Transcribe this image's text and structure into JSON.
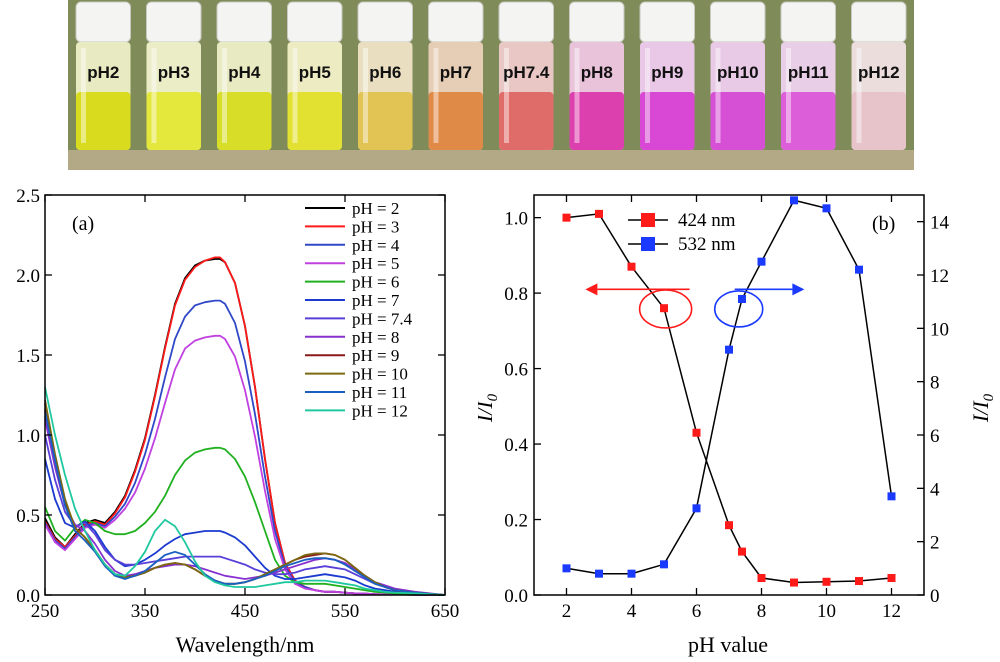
{
  "photo": {
    "vials": [
      {
        "label": "pH2",
        "liquid": "#d9dc1e",
        "glass": "#eef0c8"
      },
      {
        "label": "pH3",
        "liquid": "#e4e83c",
        "glass": "#f0f2cc"
      },
      {
        "label": "pH4",
        "liquid": "#d8de28",
        "glass": "#eef0c8"
      },
      {
        "label": "pH5",
        "liquid": "#e2e030",
        "glass": "#f2f0c8"
      },
      {
        "label": "pH6",
        "liquid": "#e2c454",
        "glass": "#efe4c6"
      },
      {
        "label": "pH7",
        "liquid": "#e08a48",
        "glass": "#ecd2bc"
      },
      {
        "label": "pH7.4",
        "liquid": "#e06c6a",
        "glass": "#eecaca"
      },
      {
        "label": "pH8",
        "liquid": "#dc3fae",
        "glass": "#efc6e2"
      },
      {
        "label": "pH9",
        "liquid": "#d848d4",
        "glass": "#eecaef"
      },
      {
        "label": "pH10",
        "liquid": "#d650d6",
        "glass": "#eecdee"
      },
      {
        "label": "pH11",
        "liquid": "#dc5ed8",
        "glass": "#eed2ee"
      },
      {
        "label": "pH12",
        "liquid": "#e6c4ca",
        "glass": "#f0e2e4"
      }
    ]
  },
  "chart_data": [
    {
      "type": "line",
      "panel_label": "(a)",
      "xlabel": "Wavelength/nm",
      "ylabel": "",
      "xlim": [
        250,
        650
      ],
      "ylim": [
        0.0,
        2.5
      ],
      "xticks": [
        250,
        350,
        450,
        550,
        650
      ],
      "yticks": [
        "0.0",
        "0.5",
        "1.0",
        "1.5",
        "2.0",
        "2.5"
      ],
      "legend_position": "top-right",
      "x": [
        250,
        260,
        270,
        280,
        290,
        300,
        310,
        320,
        330,
        340,
        350,
        360,
        370,
        380,
        390,
        400,
        410,
        420,
        425,
        430,
        440,
        450,
        460,
        470,
        480,
        490,
        500,
        510,
        520,
        530,
        540,
        550,
        560,
        570,
        580,
        590,
        600,
        620,
        650
      ],
      "series": [
        {
          "name": "pH = 2",
          "color": "#000000",
          "values": [
            0.48,
            0.36,
            0.3,
            0.38,
            0.45,
            0.47,
            0.45,
            0.52,
            0.62,
            0.78,
            0.98,
            1.25,
            1.55,
            1.82,
            1.98,
            2.06,
            2.09,
            2.1,
            2.1,
            2.08,
            1.95,
            1.68,
            1.3,
            0.85,
            0.45,
            0.2,
            0.09,
            0.05,
            0.03,
            0.02,
            0.02,
            0.015,
            0.01,
            0.008,
            0.005,
            0.004,
            0.003,
            0.002,
            0.0
          ]
        },
        {
          "name": "pH = 3",
          "color": "#ff1a1a",
          "values": [
            0.46,
            0.35,
            0.3,
            0.37,
            0.44,
            0.46,
            0.44,
            0.51,
            0.61,
            0.77,
            0.97,
            1.24,
            1.54,
            1.81,
            1.97,
            2.05,
            2.09,
            2.11,
            2.11,
            2.08,
            1.95,
            1.68,
            1.3,
            0.85,
            0.45,
            0.2,
            0.09,
            0.05,
            0.03,
            0.02,
            0.02,
            0.015,
            0.01,
            0.008,
            0.005,
            0.004,
            0.003,
            0.002,
            0.0
          ]
        },
        {
          "name": "pH = 4",
          "color": "#3048c8",
          "values": [
            0.45,
            0.34,
            0.29,
            0.36,
            0.43,
            0.45,
            0.43,
            0.49,
            0.57,
            0.7,
            0.88,
            1.1,
            1.36,
            1.6,
            1.74,
            1.81,
            1.83,
            1.84,
            1.84,
            1.82,
            1.7,
            1.46,
            1.13,
            0.74,
            0.4,
            0.18,
            0.08,
            0.05,
            0.03,
            0.02,
            0.02,
            0.015,
            0.01,
            0.008,
            0.005,
            0.004,
            0.003,
            0.002,
            0.0
          ]
        },
        {
          "name": "pH = 5",
          "color": "#c040e0",
          "values": [
            0.44,
            0.33,
            0.28,
            0.35,
            0.42,
            0.44,
            0.42,
            0.47,
            0.54,
            0.64,
            0.79,
            0.98,
            1.2,
            1.41,
            1.54,
            1.59,
            1.61,
            1.62,
            1.62,
            1.6,
            1.49,
            1.28,
            0.99,
            0.65,
            0.35,
            0.16,
            0.07,
            0.04,
            0.03,
            0.02,
            0.02,
            0.015,
            0.01,
            0.008,
            0.005,
            0.004,
            0.003,
            0.002,
            0.0
          ]
        },
        {
          "name": "pH = 6",
          "color": "#20b020",
          "values": [
            0.55,
            0.4,
            0.34,
            0.42,
            0.47,
            0.45,
            0.4,
            0.38,
            0.38,
            0.4,
            0.45,
            0.52,
            0.62,
            0.75,
            0.84,
            0.89,
            0.91,
            0.92,
            0.92,
            0.91,
            0.85,
            0.74,
            0.58,
            0.4,
            0.22,
            0.12,
            0.08,
            0.07,
            0.07,
            0.07,
            0.06,
            0.05,
            0.04,
            0.03,
            0.02,
            0.015,
            0.01,
            0.005,
            0.0
          ]
        },
        {
          "name": "pH = 7",
          "color": "#1a3ad0",
          "values": [
            0.85,
            0.6,
            0.45,
            0.42,
            0.46,
            0.4,
            0.3,
            0.22,
            0.18,
            0.19,
            0.22,
            0.26,
            0.31,
            0.35,
            0.38,
            0.39,
            0.4,
            0.4,
            0.4,
            0.39,
            0.36,
            0.31,
            0.24,
            0.17,
            0.12,
            0.1,
            0.1,
            0.11,
            0.12,
            0.13,
            0.12,
            0.11,
            0.09,
            0.06,
            0.04,
            0.03,
            0.02,
            0.01,
            0.0
          ]
        },
        {
          "name": "pH = 7.4",
          "color": "#5840d8",
          "values": [
            1.0,
            0.72,
            0.52,
            0.43,
            0.45,
            0.38,
            0.28,
            0.22,
            0.19,
            0.19,
            0.2,
            0.21,
            0.22,
            0.23,
            0.24,
            0.24,
            0.24,
            0.24,
            0.24,
            0.23,
            0.21,
            0.19,
            0.16,
            0.14,
            0.13,
            0.13,
            0.14,
            0.16,
            0.17,
            0.18,
            0.17,
            0.16,
            0.13,
            0.1,
            0.07,
            0.05,
            0.03,
            0.015,
            0.0
          ]
        },
        {
          "name": "pH = 8",
          "color": "#8830d0",
          "values": [
            1.1,
            0.8,
            0.56,
            0.44,
            0.4,
            0.32,
            0.22,
            0.15,
            0.12,
            0.13,
            0.15,
            0.17,
            0.18,
            0.19,
            0.19,
            0.18,
            0.16,
            0.14,
            0.13,
            0.12,
            0.11,
            0.1,
            0.11,
            0.12,
            0.14,
            0.16,
            0.18,
            0.2,
            0.22,
            0.23,
            0.22,
            0.2,
            0.16,
            0.12,
            0.08,
            0.06,
            0.04,
            0.02,
            0.0
          ]
        },
        {
          "name": "pH = 9",
          "color": "#8b1a1a",
          "values": [
            1.2,
            0.86,
            0.58,
            0.42,
            0.36,
            0.28,
            0.19,
            0.13,
            0.11,
            0.12,
            0.14,
            0.17,
            0.19,
            0.2,
            0.19,
            0.16,
            0.12,
            0.09,
            0.08,
            0.07,
            0.07,
            0.08,
            0.1,
            0.13,
            0.16,
            0.19,
            0.22,
            0.24,
            0.25,
            0.26,
            0.25,
            0.22,
            0.17,
            0.12,
            0.08,
            0.05,
            0.03,
            0.015,
            0.0
          ]
        },
        {
          "name": "pH = 10",
          "color": "#7a6a10",
          "values": [
            1.22,
            0.88,
            0.6,
            0.42,
            0.36,
            0.28,
            0.19,
            0.13,
            0.11,
            0.12,
            0.14,
            0.17,
            0.19,
            0.2,
            0.19,
            0.16,
            0.12,
            0.09,
            0.08,
            0.07,
            0.07,
            0.08,
            0.1,
            0.13,
            0.16,
            0.19,
            0.22,
            0.25,
            0.26,
            0.26,
            0.25,
            0.22,
            0.17,
            0.12,
            0.08,
            0.05,
            0.03,
            0.015,
            0.0
          ]
        },
        {
          "name": "pH = 11",
          "color": "#1a60c0",
          "values": [
            1.15,
            0.84,
            0.56,
            0.4,
            0.34,
            0.27,
            0.18,
            0.12,
            0.1,
            0.12,
            0.15,
            0.2,
            0.25,
            0.27,
            0.25,
            0.19,
            0.13,
            0.09,
            0.08,
            0.07,
            0.07,
            0.08,
            0.1,
            0.12,
            0.15,
            0.18,
            0.2,
            0.22,
            0.23,
            0.23,
            0.22,
            0.19,
            0.15,
            0.11,
            0.07,
            0.05,
            0.03,
            0.015,
            0.0
          ]
        },
        {
          "name": "pH = 12",
          "color": "#20c8a0",
          "values": [
            1.3,
            1.0,
            0.75,
            0.54,
            0.4,
            0.28,
            0.19,
            0.13,
            0.12,
            0.18,
            0.27,
            0.4,
            0.47,
            0.43,
            0.33,
            0.21,
            0.12,
            0.08,
            0.07,
            0.06,
            0.05,
            0.05,
            0.05,
            0.06,
            0.07,
            0.08,
            0.08,
            0.09,
            0.09,
            0.09,
            0.08,
            0.07,
            0.06,
            0.04,
            0.03,
            0.02,
            0.015,
            0.01,
            0.0
          ]
        }
      ]
    },
    {
      "type": "line",
      "panel_label": "(b)",
      "xlabel": "pH value",
      "ylabel": "I/I0",
      "y2label": "I/I0",
      "xlim": [
        1,
        13
      ],
      "ylim": [
        0.0,
        1.06
      ],
      "y2lim": [
        0,
        15
      ],
      "xticks": [
        2,
        4,
        6,
        8,
        10,
        12
      ],
      "yticks": [
        "0.0",
        "0.2",
        "0.4",
        "0.6",
        "0.8",
        "1.0"
      ],
      "y2ticks": [
        0,
        2,
        4,
        6,
        8,
        10,
        12,
        14
      ],
      "legend_position": "top-center",
      "series": [
        {
          "name": "424 nm",
          "axis": "left",
          "color": "#ff1a1a",
          "x": [
            2,
            3,
            4,
            5,
            6,
            7,
            7.4,
            8,
            9,
            10,
            11,
            12
          ],
          "values": [
            1.0,
            1.01,
            0.87,
            0.76,
            0.43,
            0.185,
            0.115,
            0.045,
            0.033,
            0.035,
            0.037,
            0.045
          ]
        },
        {
          "name": "532 nm",
          "axis": "right",
          "color": "#1a3aff",
          "x": [
            2,
            3,
            4,
            5,
            6,
            7,
            7.4,
            8,
            9,
            10,
            11,
            12
          ],
          "values": [
            1.0,
            0.8,
            0.8,
            1.15,
            3.25,
            9.2,
            11.1,
            12.5,
            14.8,
            14.5,
            12.2,
            3.7
          ]
        }
      ],
      "annotations": [
        {
          "type": "arrow-left",
          "target_series": "424 nm",
          "color": "#ff1a1a"
        },
        {
          "type": "arrow-right",
          "target_series": "532 nm",
          "color": "#1a3aff"
        }
      ]
    }
  ]
}
